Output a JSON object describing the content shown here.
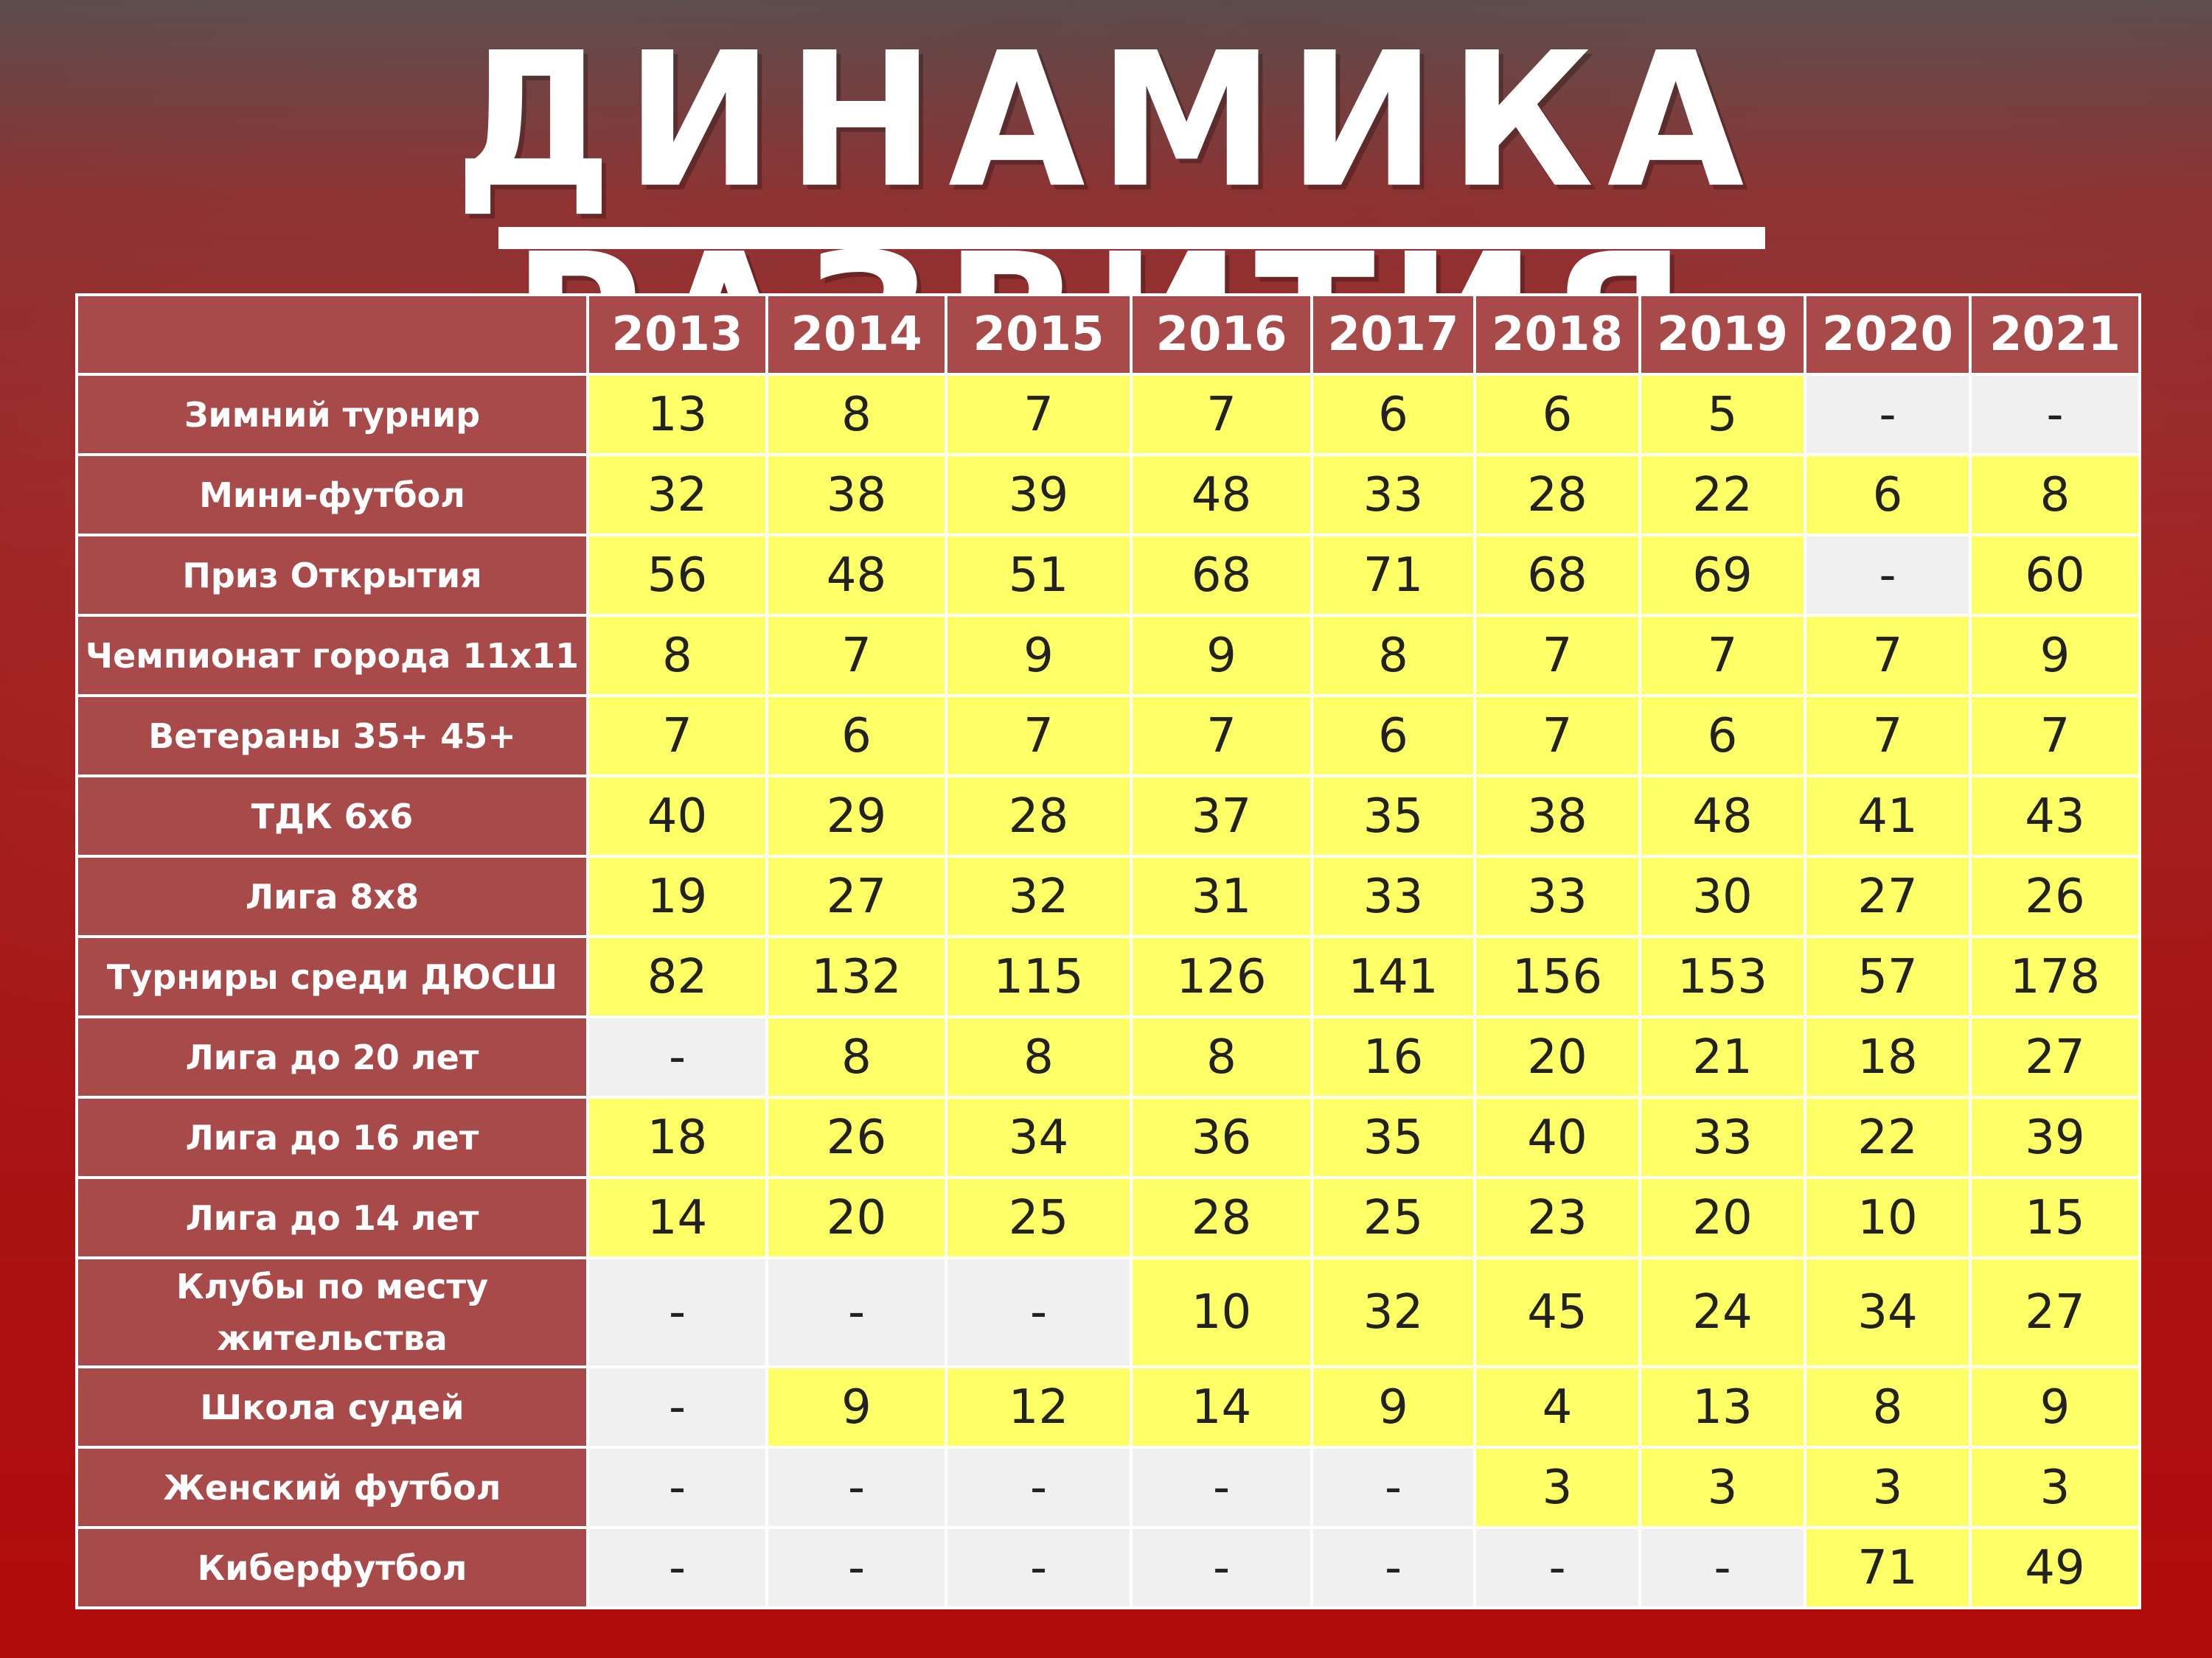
{
  "title": "ДИНАМИКА РАЗВИТИЯ",
  "colors": {
    "header_bg": "#a84a4a",
    "value_bg": "#ffff66",
    "empty_bg": "#f0f0f0",
    "background": "#a71414"
  },
  "chart_data": {
    "type": "table",
    "title": "ДИНАМИКА РАЗВИТИЯ",
    "columns": [
      "2013",
      "2014",
      "2015",
      "2016",
      "2017",
      "2018",
      "2019",
      "2020",
      "2021"
    ],
    "rows": [
      {
        "label": "Зимний турнир",
        "values": [
          "13",
          "8",
          "7",
          "7",
          "6",
          "6",
          "5",
          "-",
          "-"
        ]
      },
      {
        "label": "Мини-футбол",
        "values": [
          "32",
          "38",
          "39",
          "48",
          "33",
          "28",
          "22",
          "6",
          "8"
        ]
      },
      {
        "label": "Приз Открытия",
        "values": [
          "56",
          "48",
          "51",
          "68",
          "71",
          "68",
          "69",
          "-",
          "60"
        ]
      },
      {
        "label": "Чемпионат города 11х11",
        "values": [
          "8",
          "7",
          "9",
          "9",
          "8",
          "7",
          "7",
          "7",
          "9"
        ]
      },
      {
        "label": "Ветераны 35+ 45+",
        "values": [
          "7",
          "6",
          "7",
          "7",
          "6",
          "7",
          "6",
          "7",
          "7"
        ]
      },
      {
        "label": "ТДК 6х6",
        "values": [
          "40",
          "29",
          "28",
          "37",
          "35",
          "38",
          "48",
          "41",
          "43"
        ]
      },
      {
        "label": "Лига 8х8",
        "values": [
          "19",
          "27",
          "32",
          "31",
          "33",
          "33",
          "30",
          "27",
          "26"
        ]
      },
      {
        "label": "Турниры среди ДЮСШ",
        "values": [
          "82",
          "132",
          "115",
          "126",
          "141",
          "156",
          "153",
          "57",
          "178"
        ]
      },
      {
        "label": "Лига до 20 лет",
        "values": [
          "-",
          "8",
          "8",
          "8",
          "16",
          "20",
          "21",
          "18",
          "27"
        ]
      },
      {
        "label": "Лига до 16 лет",
        "values": [
          "18",
          "26",
          "34",
          "36",
          "35",
          "40",
          "33",
          "22",
          "39"
        ]
      },
      {
        "label": "Лига до 14 лет",
        "values": [
          "14",
          "20",
          "25",
          "28",
          "25",
          "23",
          "20",
          "10",
          "15"
        ]
      },
      {
        "label": "Клубы по месту жительства",
        "values": [
          "-",
          "-",
          "-",
          "10",
          "32",
          "45",
          "24",
          "34",
          "27"
        ]
      },
      {
        "label": "Школа судей",
        "values": [
          "-",
          "9",
          "12",
          "14",
          "9",
          "4",
          "13",
          "8",
          "9"
        ]
      },
      {
        "label": "Женский футбол",
        "values": [
          "-",
          "-",
          "-",
          "-",
          "-",
          "3",
          "3",
          "3",
          "3"
        ]
      },
      {
        "label": "Киберфутбол",
        "values": [
          "-",
          "-",
          "-",
          "-",
          "-",
          "-",
          "-",
          "71",
          "49"
        ]
      }
    ]
  }
}
